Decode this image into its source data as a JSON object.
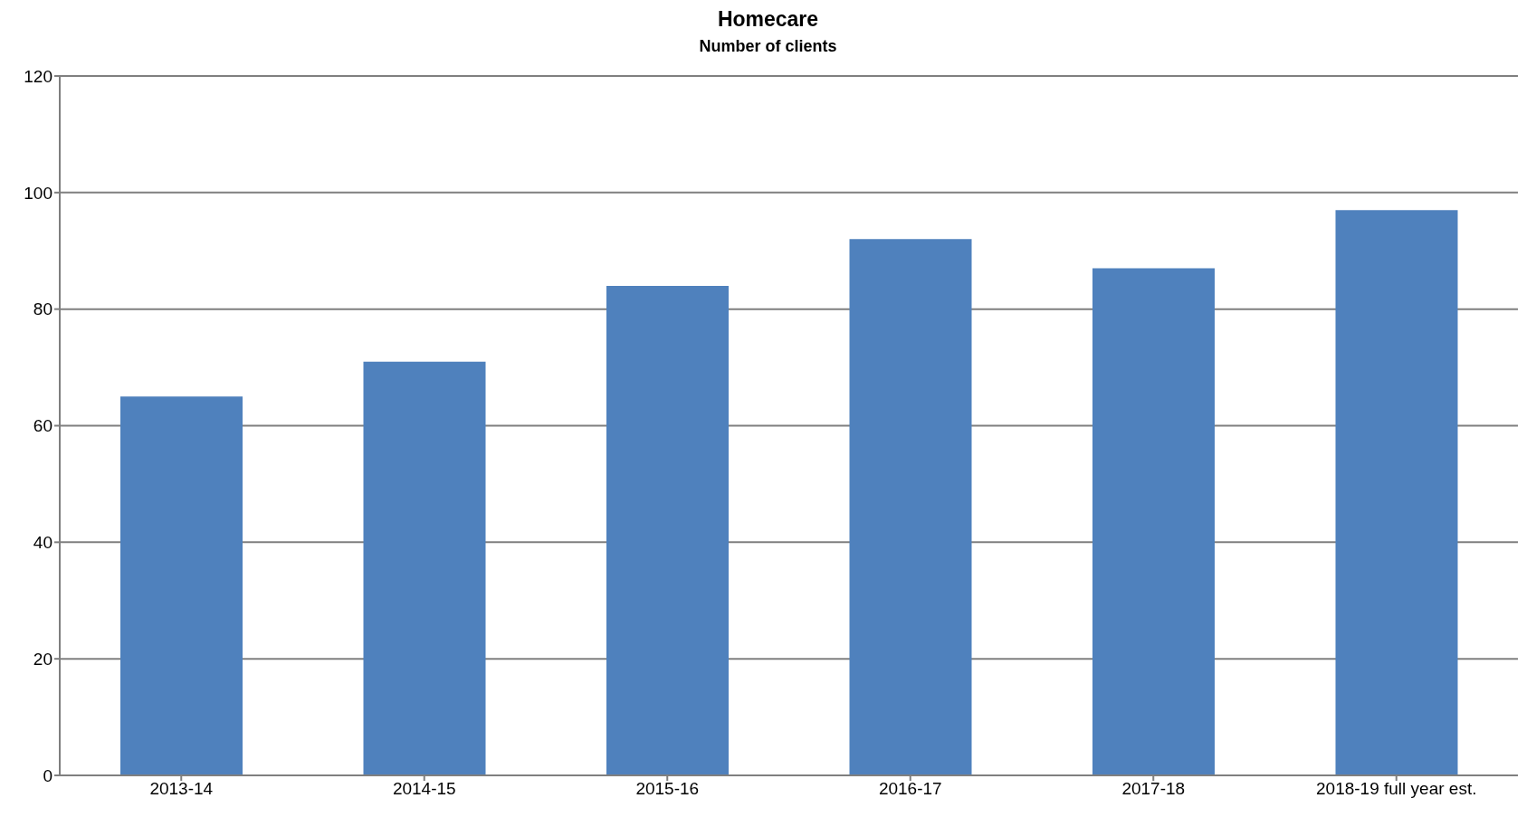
{
  "chart_data": {
    "type": "bar",
    "title": "Homecare",
    "subtitle": "Number of clients",
    "categories": [
      "2013-14",
      "2014-15",
      "2015-16",
      "2016-17",
      "2017-18",
      "2018-19 full year est."
    ],
    "values": [
      65,
      71,
      84,
      92,
      87,
      97
    ],
    "color": "#4f81bd",
    "ylim": [
      0,
      120
    ],
    "yticks": [
      0,
      20,
      40,
      60,
      80,
      100,
      120
    ],
    "grid": "y"
  }
}
